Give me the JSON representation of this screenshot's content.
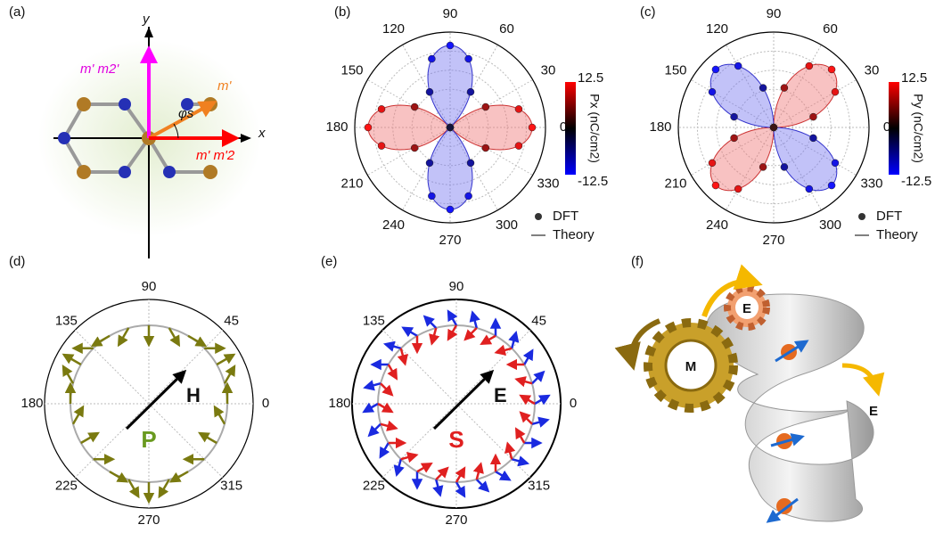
{
  "panel_a": {
    "label": "(a)",
    "y_axis": "y",
    "x_axis": "x",
    "m_m2": "m' m2'",
    "m": "m'",
    "mm_2": "m' m'2",
    "phi": "φs"
  },
  "panel_b": {
    "label": "(b)",
    "angle_ticks": [
      0,
      30,
      60,
      90,
      120,
      150,
      180,
      210,
      240,
      270,
      300,
      330
    ],
    "colorbar_title": "Px (nC/cm2)",
    "colorbar_max": "12.5",
    "colorbar_min": "-12.5",
    "legend": [
      "DFT",
      "Theory"
    ]
  },
  "panel_c": {
    "label": "(c)",
    "angle_ticks": [
      0,
      30,
      60,
      90,
      120,
      150,
      180,
      210,
      240,
      270,
      300,
      330
    ],
    "colorbar_title": "Py (nC/cm2)",
    "colorbar_max": "12.5",
    "colorbar_min": "-12.5",
    "legend": [
      "DFT",
      "Theory"
    ]
  },
  "panel_d": {
    "label": "(d)",
    "angle_ticks": [
      0,
      45,
      90,
      135,
      180,
      225,
      270,
      315
    ],
    "field": "H",
    "center": "P"
  },
  "panel_e": {
    "label": "(e)",
    "angle_ticks": [
      0,
      45,
      90,
      135,
      180,
      225,
      270,
      315
    ],
    "field": "E",
    "center": "S"
  },
  "panel_f": {
    "label": "(f)",
    "gear_big": "M",
    "gear_small": "E",
    "helix": "E"
  }
}
